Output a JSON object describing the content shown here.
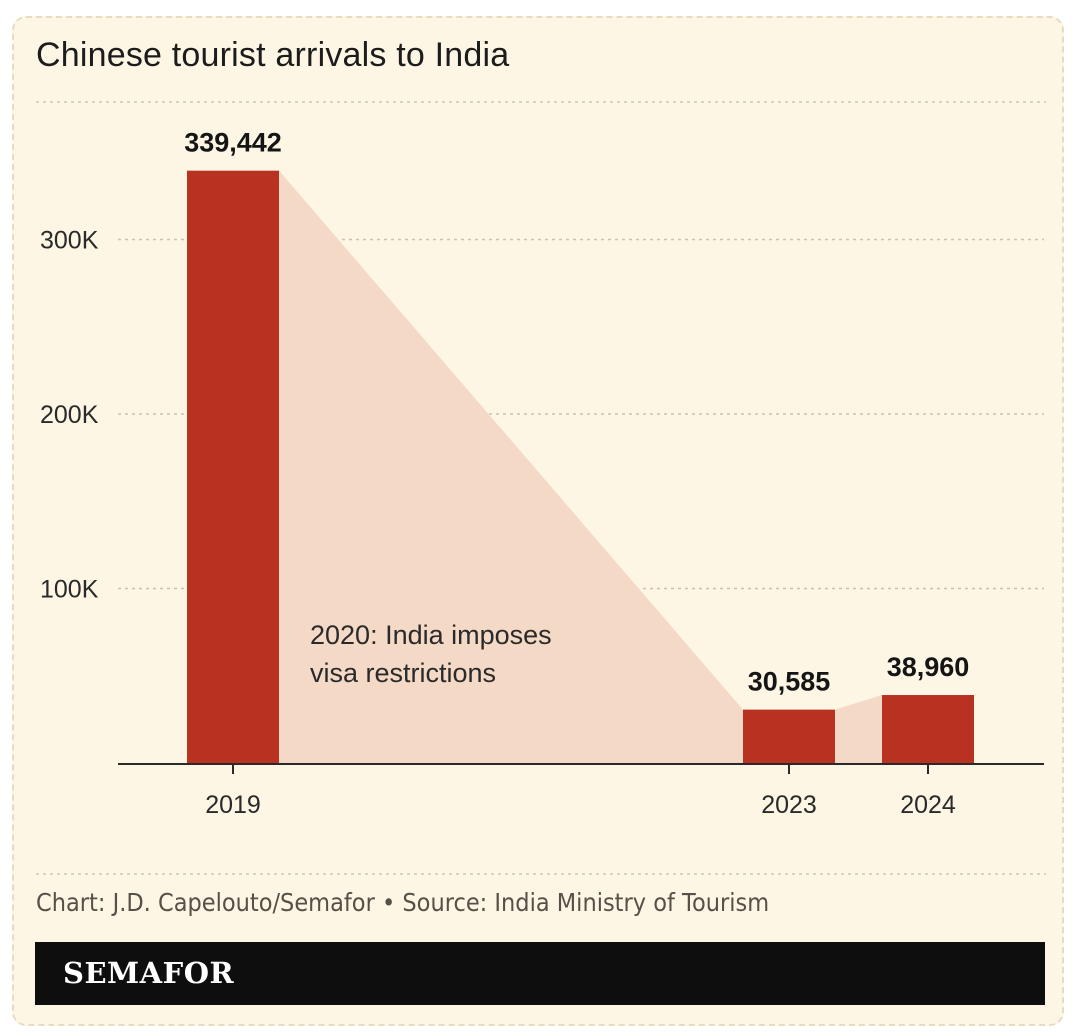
{
  "chart_data": {
    "type": "bar",
    "title": "Chinese tourist arrivals to India",
    "categories": [
      "2019",
      "2023",
      "2024"
    ],
    "values": [
      339442,
      30585,
      38960
    ],
    "value_labels": [
      "339,442",
      "30,585",
      "38,960"
    ],
    "ylim": [
      0,
      400000
    ],
    "yticks": [
      100000,
      200000,
      300000
    ],
    "ytick_labels": [
      "100K",
      "200K",
      "300K"
    ],
    "xlabel": "",
    "ylabel": "",
    "annotation": {
      "line1": "2020: India imposes",
      "line2": "visa restrictions"
    },
    "grid": true,
    "colors": {
      "bar": "#b93121",
      "connector": "#f4d9c6",
      "grid": "#c9c2b0",
      "axis": "#2a2a2a",
      "background": "#fdf6e4"
    }
  },
  "footer": {
    "note": "Chart: J.D. Capelouto/Semafor • Source: India Ministry of Tourism",
    "brand": "SEMAFOR"
  }
}
